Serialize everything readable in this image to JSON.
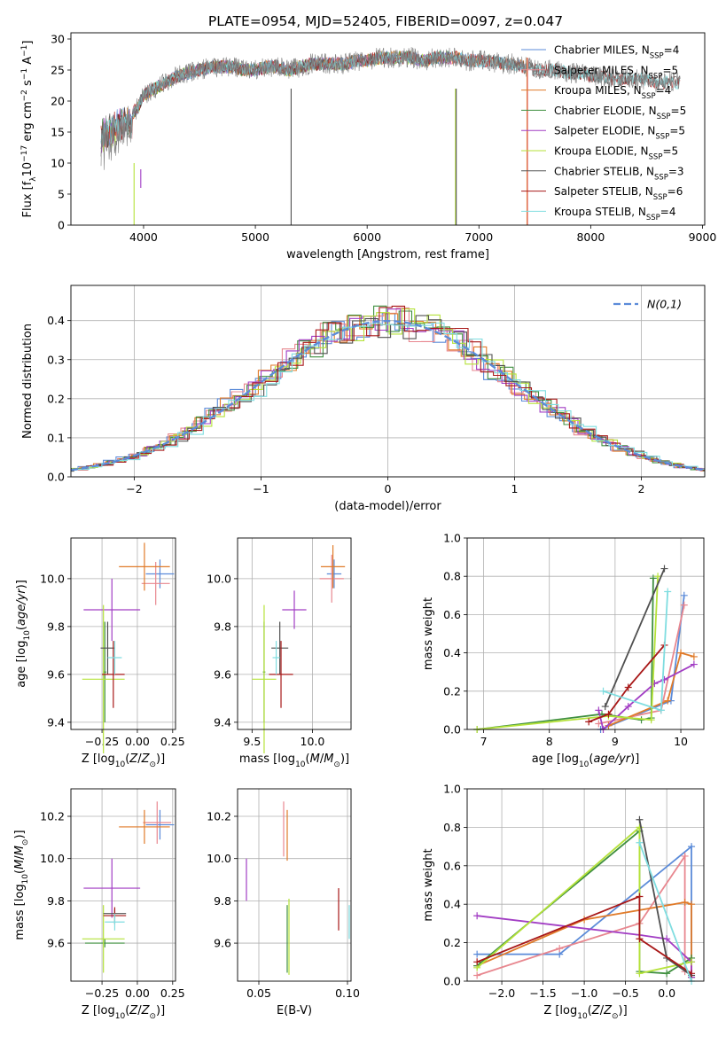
{
  "figure": {
    "title": "PLATE=0954, MJD=52405, FIBERID=0097, z=0.047"
  },
  "colors": {
    "Chabrier MILES": "#5b8bd9",
    "Salpeter MILES": "#e8878f",
    "Kroupa MILES": "#e07b2a",
    "Chabrier ELODIE": "#3f8f3f",
    "Salpeter ELODIE": "#a23ec4",
    "Kroupa ELODIE": "#b5e23a",
    "Chabrier STELIB": "#505050",
    "Salpeter STELIB": "#a81818",
    "Kroupa STELIB": "#7fdde0"
  },
  "chart_data": [
    {
      "id": "spectrum",
      "type": "line",
      "xlabel": "wavelength [Angstrom, rest frame]",
      "ylabel": "Flux [f_λ10^-17 erg cm^-2 s^-1 A^-1]",
      "xlim": [
        3350,
        9020
      ],
      "ylim": [
        0,
        31
      ],
      "xticks": [
        4000,
        5000,
        6000,
        7000,
        8000,
        9000
      ],
      "yticks": [
        0,
        5,
        10,
        15,
        20,
        25,
        30
      ],
      "grid": false,
      "legend_position": "top-right",
      "legend": [
        {
          "main": "Chabrier MILES, N",
          "sub": "SSP",
          "tail": "=4",
          "color_key": "Chabrier MILES"
        },
        {
          "main": "Salpeter MILES, N",
          "sub": "SSP",
          "tail": "=5",
          "color_key": "Salpeter MILES"
        },
        {
          "main": "Kroupa MILES, N",
          "sub": "SSP",
          "tail": "=4",
          "color_key": "Kroupa MILES"
        },
        {
          "main": "Chabrier ELODIE, N",
          "sub": "SSP",
          "tail": "=5",
          "color_key": "Chabrier ELODIE"
        },
        {
          "main": "Salpeter ELODIE, N",
          "sub": "SSP",
          "tail": "=5",
          "color_key": "Salpeter ELODIE"
        },
        {
          "main": "Kroupa ELODIE, N",
          "sub": "SSP",
          "tail": "=5",
          "color_key": "Kroupa ELODIE"
        },
        {
          "main": "Chabrier STELIB, N",
          "sub": "SSP",
          "tail": "=3",
          "color_key": "Chabrier STELIB"
        },
        {
          "main": "Salpeter STELIB, N",
          "sub": "SSP",
          "tail": "=6",
          "color_key": "Salpeter STELIB"
        },
        {
          "main": "Kroupa STELIB, N",
          "sub": "SSP",
          "tail": "=4",
          "color_key": "Kroupa STELIB"
        }
      ],
      "data_curve": {
        "x": [
          3620,
          3700,
          3800,
          3850,
          3900,
          3950,
          4000,
          4100,
          4200,
          4300,
          4400,
          4500,
          4600,
          4700,
          4800,
          4900,
          5000,
          5100,
          5200,
          5300,
          5400,
          5500,
          5600,
          5700,
          5800,
          5900,
          6000,
          6100,
          6200,
          6300,
          6400,
          6500,
          6600,
          6700,
          6800,
          6900,
          7000,
          7100,
          7200,
          7300,
          7400,
          7500,
          7600,
          7700,
          7800,
          7900,
          8000,
          8100,
          8200,
          8300,
          8400,
          8500,
          8600,
          8700,
          8800
        ],
        "y": [
          16,
          17,
          18,
          19,
          18,
          19,
          21,
          22,
          23,
          24,
          24.5,
          25,
          25.5,
          25.5,
          25.5,
          25,
          25,
          25.5,
          25.5,
          25,
          25.5,
          26,
          26,
          26,
          26,
          26.5,
          26.5,
          27,
          27,
          27,
          27,
          26.5,
          27,
          27,
          27,
          26.5,
          26.5,
          26.5,
          26,
          26,
          25.5,
          25,
          25,
          25,
          24.5,
          24.5,
          24,
          24,
          23.5,
          23.5,
          23.5,
          23.5,
          23,
          23,
          23
        ]
      },
      "spikes": [
        {
          "x": 3915,
          "y0": 0,
          "y1": 10,
          "color_key": "Kroupa ELODIE"
        },
        {
          "x": 3975,
          "y0": 6,
          "y1": 9,
          "color_key": "Salpeter ELODIE"
        },
        {
          "x": 5320,
          "y0": 0,
          "y1": 22,
          "color_key": "Chabrier STELIB"
        },
        {
          "x": 6790,
          "y0": 0,
          "y1": 22,
          "color_key": "Kroupa ELODIE"
        },
        {
          "x": 6797,
          "y0": 0,
          "y1": 22,
          "color_key": "Chabrier STELIB"
        },
        {
          "x": 7430,
          "y0": 0,
          "y1": 27,
          "color_key": "Kroupa MILES"
        },
        {
          "x": 7436,
          "y0": 0,
          "y1": 27,
          "color_key": "Salpeter MILES"
        }
      ]
    },
    {
      "id": "residuals",
      "type": "histogram",
      "xlabel": "(data-model)/error",
      "ylabel": "Normed distribution",
      "xlim": [
        -2.5,
        2.5
      ],
      "ylim": [
        0,
        0.49
      ],
      "xticks": [
        -2,
        -1,
        0,
        1,
        2
      ],
      "yticks": [
        0.0,
        0.1,
        0.2,
        0.3,
        0.4
      ],
      "grid": true,
      "legend_position": "top-right",
      "legend_label": "N(0,1)",
      "bin_width": 0.1
    },
    {
      "id": "age-vs-Z",
      "type": "errorbar",
      "xlabel": "Z [log10(Z/Z⊙)]",
      "ylabel": "age [log10(age/yr)]",
      "xlim": [
        -0.47,
        0.27
      ],
      "ylim": [
        9.37,
        10.17
      ],
      "xticks": [
        -0.25,
        0.0,
        0.25
      ],
      "yticks": [
        9.4,
        9.6,
        9.8,
        10.0
      ],
      "grid": true,
      "points": [
        {
          "key": "Chabrier MILES",
          "x": 0.16,
          "y": 10.02,
          "xerr": 0.1,
          "yerr": 0.06
        },
        {
          "key": "Salpeter MILES",
          "x": 0.13,
          "y": 9.98,
          "xerr": 0.1,
          "yerr": 0.09
        },
        {
          "key": "Kroupa MILES",
          "x": 0.05,
          "y": 10.05,
          "xerr": 0.18,
          "yerr": 0.1
        },
        {
          "key": "Chabrier ELODIE",
          "x": -0.23,
          "y": 9.61,
          "xerr": 0.01,
          "yerr": 0.21
        },
        {
          "key": "Salpeter ELODIE",
          "x": -0.18,
          "y": 9.87,
          "xerr": 0.2,
          "yerr": 0.13
        },
        {
          "key": "Kroupa ELODIE",
          "x": -0.24,
          "y": 9.58,
          "xerr": 0.15,
          "yerr": 0.31
        },
        {
          "key": "Chabrier STELIB",
          "x": -0.21,
          "y": 9.71,
          "xerr": 0.05,
          "yerr": 0.11
        },
        {
          "key": "Salpeter STELIB",
          "x": -0.17,
          "y": 9.6,
          "xerr": 0.08,
          "yerr": 0.14
        },
        {
          "key": "Kroupa STELIB",
          "x": -0.16,
          "y": 9.67,
          "xerr": 0.05,
          "yerr": 0.07
        }
      ]
    },
    {
      "id": "age-vs-mass",
      "type": "errorbar",
      "xlabel": "mass [log10(M/M⊙)]",
      "ylabel": "",
      "xlim": [
        9.38,
        10.32
      ],
      "ylim": [
        9.37,
        10.17
      ],
      "xticks": [
        9.5,
        10.0
      ],
      "yticks": [
        9.4,
        9.6,
        9.8,
        10.0
      ],
      "grid": true,
      "points": [
        {
          "key": "Chabrier MILES",
          "x": 10.18,
          "y": 10.02,
          "xerr": 0.06,
          "yerr": 0.06
        },
        {
          "key": "Salpeter MILES",
          "x": 10.16,
          "y": 10.0,
          "xerr": 0.1,
          "yerr": 0.1
        },
        {
          "key": "Kroupa MILES",
          "x": 10.17,
          "y": 10.05,
          "xerr": 0.1,
          "yerr": 0.09
        },
        {
          "key": "Chabrier ELODIE",
          "x": 9.6,
          "y": 9.61,
          "xerr": 0.01,
          "yerr": 0.21
        },
        {
          "key": "Salpeter ELODIE",
          "x": 9.85,
          "y": 9.87,
          "xerr": 0.1,
          "yerr": 0.08
        },
        {
          "key": "Kroupa ELODIE",
          "x": 9.6,
          "y": 9.58,
          "xerr": 0.1,
          "yerr": 0.31
        },
        {
          "key": "Chabrier STELIB",
          "x": 9.73,
          "y": 9.71,
          "xerr": 0.07,
          "yerr": 0.11
        },
        {
          "key": "Salpeter STELIB",
          "x": 9.74,
          "y": 9.6,
          "xerr": 0.1,
          "yerr": 0.14
        },
        {
          "key": "Kroupa STELIB",
          "x": 9.7,
          "y": 9.67,
          "xerr": 0.03,
          "yerr": 0.07
        }
      ]
    },
    {
      "id": "massweight-vs-age",
      "type": "line",
      "xlabel": "age [log10(age/yr)]",
      "ylabel": "mass weight",
      "xlim": [
        6.75,
        10.35
      ],
      "ylim": [
        0,
        1.0
      ],
      "xticks": [
        7,
        8,
        9,
        10
      ],
      "yticks": [
        0.0,
        0.2,
        0.4,
        0.6,
        0.8,
        1.0
      ],
      "grid": true,
      "series": [
        {
          "key": "Chabrier MILES",
          "x": [
            8.78,
            9.85,
            10.05
          ],
          "y": [
            0.0,
            0.15,
            0.7
          ]
        },
        {
          "key": "Salpeter MILES",
          "x": [
            8.75,
            9.7,
            10.05
          ],
          "y": [
            0.03,
            0.1,
            0.65
          ]
        },
        {
          "key": "Kroupa MILES",
          "x": [
            8.9,
            9.8,
            10.0,
            10.2
          ],
          "y": [
            0.02,
            0.15,
            0.4,
            0.38
          ]
        },
        {
          "key": "Chabrier ELODIE",
          "x": [
            6.9,
            8.8,
            9.4,
            9.55,
            9.58
          ],
          "y": [
            0.0,
            0.08,
            0.05,
            0.06,
            0.79
          ]
        },
        {
          "key": "Salpeter ELODIE",
          "x": [
            8.75,
            8.82,
            9.2,
            9.6,
            9.75,
            10.2
          ],
          "y": [
            0.1,
            0.0,
            0.12,
            0.24,
            0.26,
            0.34
          ]
        },
        {
          "key": "Kroupa ELODIE",
          "x": [
            6.9,
            8.9,
            9.55,
            9.65
          ],
          "y": [
            0.0,
            0.07,
            0.05,
            0.8
          ]
        },
        {
          "key": "Chabrier STELIB",
          "x": [
            8.85,
            9.75
          ],
          "y": [
            0.12,
            0.84
          ]
        },
        {
          "key": "Salpeter STELIB",
          "x": [
            8.6,
            8.9,
            9.2,
            9.75
          ],
          "y": [
            0.04,
            0.08,
            0.22,
            0.44
          ]
        },
        {
          "key": "Kroupa STELIB",
          "x": [
            8.82,
            9.7,
            9.8
          ],
          "y": [
            0.2,
            0.1,
            0.72
          ]
        }
      ]
    },
    {
      "id": "mass-vs-Z",
      "type": "errorbar",
      "xlabel": "Z [log10(Z/Z⊙)]",
      "ylabel": "mass [log10(M/M⊙)]",
      "xlim": [
        -0.47,
        0.27
      ],
      "ylim": [
        9.42,
        10.33
      ],
      "xticks": [
        -0.25,
        0.0,
        0.25
      ],
      "yticks": [
        9.6,
        9.8,
        10.0,
        10.2
      ],
      "grid": true,
      "points": [
        {
          "key": "Chabrier MILES",
          "x": 0.16,
          "y": 10.16,
          "xerr": 0.1,
          "yerr": 0.07
        },
        {
          "key": "Salpeter MILES",
          "x": 0.14,
          "y": 10.17,
          "xerr": 0.1,
          "yerr": 0.1
        },
        {
          "key": "Kroupa MILES",
          "x": 0.05,
          "y": 10.15,
          "xerr": 0.18,
          "yerr": 0.08
        },
        {
          "key": "Chabrier ELODIE",
          "x": -0.23,
          "y": 9.6,
          "xerr": 0.14,
          "yerr": 0.02
        },
        {
          "key": "Salpeter ELODIE",
          "x": -0.18,
          "y": 9.86,
          "xerr": 0.2,
          "yerr": 0.14
        },
        {
          "key": "Kroupa ELODIE",
          "x": -0.24,
          "y": 9.62,
          "xerr": 0.15,
          "yerr": 0.16
        },
        {
          "key": "Chabrier STELIB",
          "x": -0.16,
          "y": 9.74,
          "xerr": 0.08,
          "yerr": 0.02
        },
        {
          "key": "Salpeter STELIB",
          "x": -0.16,
          "y": 9.73,
          "xerr": 0.08,
          "yerr": 0.04
        },
        {
          "key": "Kroupa STELIB",
          "x": -0.16,
          "y": 9.7,
          "xerr": 0.07,
          "yerr": 0.04
        }
      ]
    },
    {
      "id": "mass-vs-ebv",
      "type": "errorbar",
      "xlabel": "E(B-V)",
      "ylabel": "",
      "xlim": [
        0.038,
        0.102
      ],
      "ylim": [
        9.42,
        10.33
      ],
      "xticks": [
        0.05,
        0.1
      ],
      "yticks": [
        9.6,
        9.8,
        10.0,
        10.2
      ],
      "grid": true,
      "points": [
        {
          "key": "Salpeter MILES",
          "x": 0.064,
          "y": 10.14,
          "xerr": 0,
          "yerr": 0.13
        },
        {
          "key": "Kroupa MILES",
          "x": 0.066,
          "y": 10.11,
          "xerr": 0,
          "yerr": 0.12
        },
        {
          "key": "Salpeter ELODIE",
          "x": 0.043,
          "y": 9.9,
          "xerr": 0,
          "yerr": 0.1
        },
        {
          "key": "Chabrier ELODIE",
          "x": 0.066,
          "y": 9.62,
          "xerr": 0,
          "yerr": 0.16
        },
        {
          "key": "Kroupa ELODIE",
          "x": 0.067,
          "y": 9.63,
          "xerr": 0,
          "yerr": 0.18
        },
        {
          "key": "Salpeter STELIB",
          "x": 0.095,
          "y": 9.76,
          "xerr": 0,
          "yerr": 0.1
        },
        {
          "key": "Kroupa STELIB",
          "x": 0.101,
          "y": 9.7,
          "xerr": 0,
          "yerr": 0.08
        }
      ]
    },
    {
      "id": "massweight-vs-Z",
      "type": "line",
      "xlabel": "Z [log10(Z/Z⊙)]",
      "ylabel": "mass weight",
      "xlim": [
        -2.42,
        0.45
      ],
      "ylim": [
        0,
        1.0
      ],
      "xticks": [
        -2.0,
        -1.5,
        -1.0,
        -0.5,
        0.0
      ],
      "yticks": [
        0.0,
        0.2,
        0.4,
        0.6,
        0.8,
        1.0
      ],
      "grid": true,
      "series": [
        {
          "key": "Chabrier MILES",
          "x": [
            -2.3,
            -1.3,
            0.3,
            0.3
          ],
          "y": [
            0.14,
            0.14,
            0.7,
            0.02
          ]
        },
        {
          "key": "Salpeter MILES",
          "x": [
            -2.3,
            -1.3,
            -0.33,
            0.22,
            0.22
          ],
          "y": [
            0.03,
            0.17,
            0.3,
            0.65,
            0.05
          ]
        },
        {
          "key": "Kroupa MILES",
          "x": [
            -2.3,
            -1.0,
            0.22,
            0.3,
            0.3
          ],
          "y": [
            0.08,
            0.32,
            0.41,
            0.4,
            0.02
          ]
        },
        {
          "key": "Chabrier ELODIE",
          "x": [
            -2.3,
            -0.33,
            -0.33,
            0.0,
            0.3
          ],
          "y": [
            0.08,
            0.78,
            0.05,
            0.04,
            0.12
          ]
        },
        {
          "key": "Salpeter ELODIE",
          "x": [
            -2.3,
            -0.33,
            0.0,
            0.3,
            0.3
          ],
          "y": [
            0.34,
            0.24,
            0.22,
            0.1,
            0.02
          ]
        },
        {
          "key": "Kroupa ELODIE",
          "x": [
            -2.3,
            -0.33,
            -0.33,
            0.3
          ],
          "y": [
            0.07,
            0.8,
            0.04,
            0.1
          ]
        },
        {
          "key": "Chabrier STELIB",
          "x": [
            -0.33,
            0.0,
            0.3
          ],
          "y": [
            0.84,
            0.12,
            0.03
          ]
        },
        {
          "key": "Salpeter STELIB",
          "x": [
            -2.3,
            -0.33,
            -0.33,
            0.3
          ],
          "y": [
            0.1,
            0.44,
            0.22,
            0.04
          ]
        },
        {
          "key": "Kroupa STELIB",
          "x": [
            -0.33,
            0.3
          ],
          "y": [
            0.72,
            0.0
          ]
        }
      ]
    }
  ]
}
